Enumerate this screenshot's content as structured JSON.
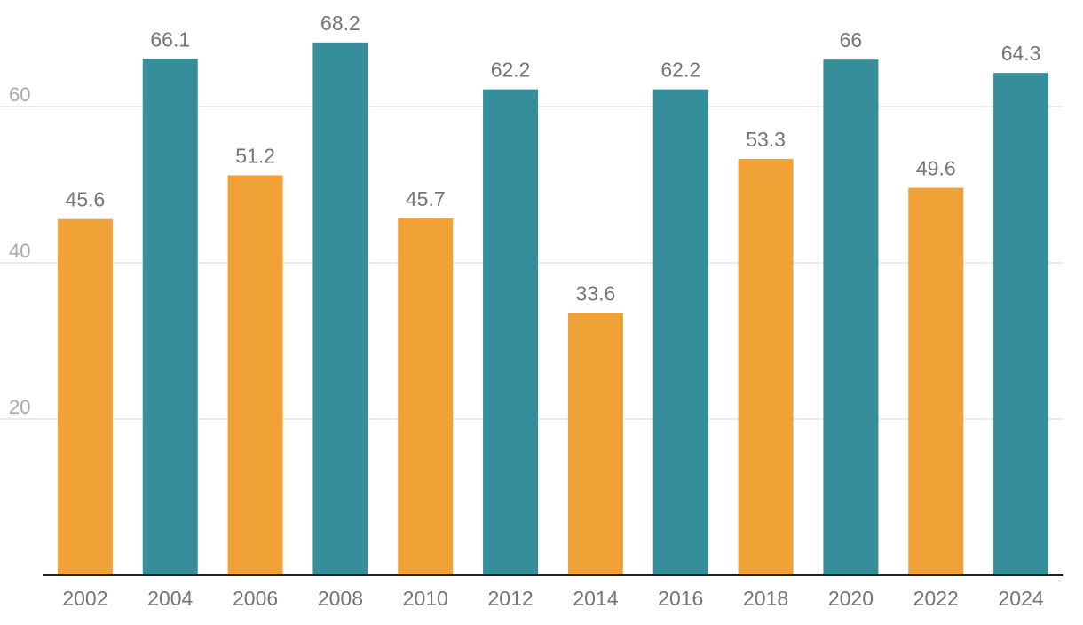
{
  "chart_data": {
    "type": "bar",
    "title": "",
    "xlabel": "",
    "ylabel": "",
    "categories": [
      "2002",
      "2004",
      "2006",
      "2008",
      "2010",
      "2012",
      "2014",
      "2016",
      "2018",
      "2020",
      "2022",
      "2024"
    ],
    "values": [
      45.6,
      66.1,
      51.2,
      68.2,
      45.7,
      62.2,
      33.6,
      62.2,
      53.3,
      66,
      49.6,
      64.3
    ],
    "data_labels": [
      "45.6",
      "66.1",
      "51.2",
      "68.2",
      "45.7",
      "62.2",
      "33.6",
      "62.2",
      "53.3",
      "66",
      "49.6",
      "64.3"
    ],
    "ylim": [
      0,
      71
    ],
    "y_ticks": [
      20,
      40,
      60
    ],
    "y_tick_labels": [
      "20",
      "40",
      "60"
    ],
    "grid": true,
    "legend": "none",
    "bar_colors": [
      "#f0a236",
      "#368e9a",
      "#f0a236",
      "#368e9a",
      "#f0a236",
      "#368e9a",
      "#f0a236",
      "#368e9a",
      "#f0a236",
      "#368e9a",
      "#f0a236",
      "#368e9a"
    ]
  }
}
